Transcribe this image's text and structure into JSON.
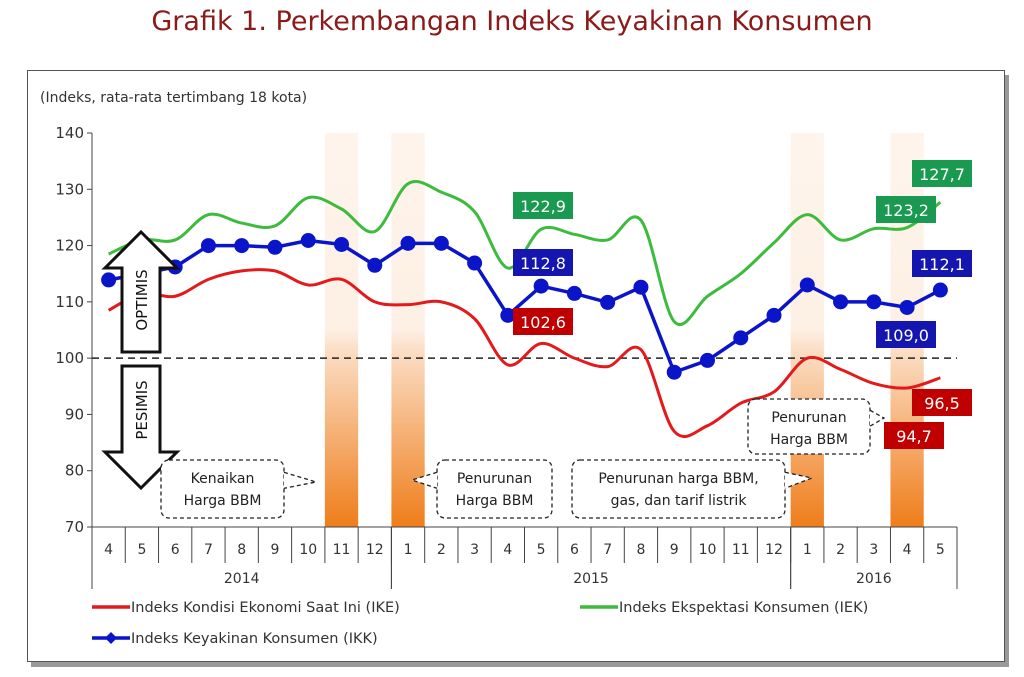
{
  "title": "Grafik 1. Perkembangan Indeks Keyakinan Konsumen",
  "chart_data": {
    "type": "line",
    "title": "Grafik 1. Perkembangan Indeks Keyakinan Konsumen",
    "ylabel": "(Indeks, rata-rata tertimbang 18 kota)",
    "ylim": [
      70,
      140
    ],
    "yticks": [
      70,
      80,
      90,
      100,
      110,
      120,
      130,
      140
    ],
    "reference_line": 100,
    "categories": [
      "4",
      "5",
      "6",
      "7",
      "8",
      "9",
      "10",
      "11",
      "12",
      "1",
      "2",
      "3",
      "4",
      "5",
      "6",
      "7",
      "8",
      "9",
      "10",
      "11",
      "12",
      "1",
      "2",
      "3",
      "4",
      "5"
    ],
    "years": [
      {
        "label": "2014",
        "start": 0,
        "end": 8
      },
      {
        "label": "2015",
        "start": 9,
        "end": 20
      },
      {
        "label": "2016",
        "start": 21,
        "end": 25
      }
    ],
    "shaded_months": [
      7,
      9,
      21,
      24
    ],
    "series": [
      {
        "name": "Indeks Kondisi Ekonomi Saat Ini (IKE)",
        "color": "#e31a1c",
        "markers": false,
        "values": [
          108.5,
          111.5,
          111,
          114,
          115.5,
          115.5,
          113,
          114,
          110,
          109.5,
          110,
          107,
          98.8,
          102.6,
          100,
          98.5,
          101.5,
          87,
          88,
          92,
          94,
          100,
          98,
          95.5,
          94.7,
          96.5
        ]
      },
      {
        "name": "Indeks Ekspektasi Konsumen (IEK)",
        "color": "#3dbb3d",
        "markers": false,
        "values": [
          118.5,
          121,
          121,
          125.5,
          124,
          123.5,
          128.5,
          126.5,
          122.5,
          131,
          129.5,
          126,
          116,
          122.9,
          122,
          121,
          124.5,
          106.5,
          111,
          115,
          120.5,
          125.5,
          121,
          123,
          123.2,
          127.7
        ]
      },
      {
        "name": "Indeks Keyakinan Konsumen (IKK)",
        "color": "#0a14c8",
        "markers": true,
        "values": [
          113.9,
          115,
          116.2,
          120,
          120,
          119.7,
          120.9,
          120.2,
          116.5,
          120.4,
          120.4,
          116.9,
          107.6,
          112.8,
          111.5,
          109.9,
          112.6,
          97.5,
          99.6,
          103.6,
          107.6,
          113,
          110,
          110,
          109,
          112.1
        ]
      }
    ],
    "data_labels": [
      {
        "text": "122,9",
        "series": 1,
        "color": "#1a9a50"
      },
      {
        "text": "123,2",
        "series": 1,
        "color": "#1a9a50"
      },
      {
        "text": "127,7",
        "series": 1,
        "color": "#1a9a50"
      },
      {
        "text": "112,8",
        "series": 2,
        "color": "#1515b0"
      },
      {
        "text": "109,0",
        "series": 2,
        "color": "#1515b0"
      },
      {
        "text": "112,1",
        "series": 2,
        "color": "#1515b0"
      },
      {
        "text": "102,6",
        "series": 0,
        "color": "#c00000"
      },
      {
        "text": "94,7",
        "series": 0,
        "color": "#c00000"
      },
      {
        "text": "96,5",
        "series": 0,
        "color": "#c00000"
      }
    ],
    "zones": {
      "optimis": "OPTIMIS",
      "pesimis": "PESIMIS"
    },
    "annotations": [
      [
        "Kenaikan",
        "Harga BBM"
      ],
      [
        "Penurunan",
        "Harga BBM"
      ],
      [
        "Penurunan harga BBM,",
        "gas, dan tarif listrik"
      ],
      [
        "Penurunan",
        "Harga BBM"
      ]
    ],
    "shade_color": "#ef7d1a",
    "legend_placement": "bottom",
    "grid": false
  }
}
